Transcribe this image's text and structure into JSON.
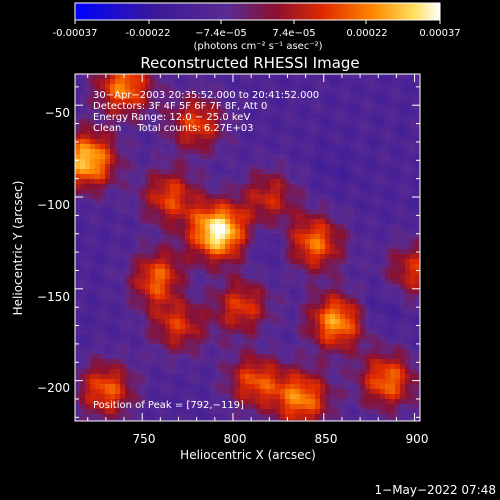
{
  "colorbar": {
    "tick_labels": [
      "-0.00037",
      "-0.00022",
      "−7.4e−05",
      "7.4e−05",
      "0.00022",
      "0.00037"
    ],
    "tick_values": [
      -0.00037,
      -0.00022,
      -7.4e-05,
      7.4e-05,
      0.00022,
      0.00037
    ],
    "range": [
      -0.00037,
      0.00037
    ],
    "units_label": "(photons cm⁻² s⁻¹ asec⁻²)",
    "colors": [
      "#0000ff",
      "#3a1a8c",
      "#5a2a96",
      "#8a1a2a",
      "#e03000",
      "#ff8000",
      "#ffd040",
      "#ffffff"
    ]
  },
  "chart_data": {
    "type": "heatmap",
    "title": "Reconstructed RHESSI Image",
    "xlabel": "Heliocentric X (arcsec)",
    "ylabel": "Heliocentric Y (arcsec)",
    "xlim": [
      713,
      903
    ],
    "ylim": [
      -222,
      -33
    ],
    "x_ticks": [
      750,
      800,
      850,
      900
    ],
    "x_tick_labels": [
      "750",
      "800",
      "850",
      "900"
    ],
    "y_ticks": [
      -50,
      -100,
      -150,
      -200
    ],
    "y_tick_labels": [
      "−50",
      "−100",
      "−150",
      "−200"
    ],
    "annotations": [
      "30−Apr−2003 20:35:52.000 to 20:41:52.000",
      "Detectors: 3F 4F 5F 6F 7F 8F, Att 0",
      "Energy Range: 12.0 − 25.0 keV",
      "Clean     Total counts: 6.27E+03"
    ],
    "peak_label": "Position of Peak = [792,−119]",
    "peak": [
      792,
      -119
    ],
    "sources": [
      {
        "x": 792,
        "y": -119,
        "v": 0.00037
      },
      {
        "x": 720,
        "y": -80,
        "v": 0.0003
      },
      {
        "x": 760,
        "y": -145,
        "v": 0.00022
      },
      {
        "x": 845,
        "y": -125,
        "v": 0.0002
      },
      {
        "x": 857,
        "y": -168,
        "v": 0.00025
      },
      {
        "x": 838,
        "y": -210,
        "v": 0.00022
      },
      {
        "x": 730,
        "y": -205,
        "v": 0.00018
      },
      {
        "x": 885,
        "y": -200,
        "v": 0.0002
      },
      {
        "x": 740,
        "y": -40,
        "v": 0.00022
      },
      {
        "x": 780,
        "y": -60,
        "v": 0.00015
      },
      {
        "x": 765,
        "y": -100,
        "v": 0.00015
      },
      {
        "x": 900,
        "y": -140,
        "v": 0.00012
      },
      {
        "x": 812,
        "y": -200,
        "v": 0.00016
      },
      {
        "x": 770,
        "y": -170,
        "v": 0.00012
      },
      {
        "x": 805,
        "y": -160,
        "v": 0.00014
      },
      {
        "x": 820,
        "y": -100,
        "v": 0.0001
      }
    ],
    "negative_regions": [
      {
        "x": 770,
        "y": -150,
        "v": -0.00022
      },
      {
        "x": 820,
        "y": -125,
        "v": -0.00018
      },
      {
        "x": 855,
        "y": -85,
        "v": -0.00015
      },
      {
        "x": 880,
        "y": -160,
        "v": -0.00018
      },
      {
        "x": 760,
        "y": -120,
        "v": -0.00012
      },
      {
        "x": 815,
        "y": -180,
        "v": -0.00014
      }
    ]
  },
  "timestamp": "1−May−2022 07:48"
}
